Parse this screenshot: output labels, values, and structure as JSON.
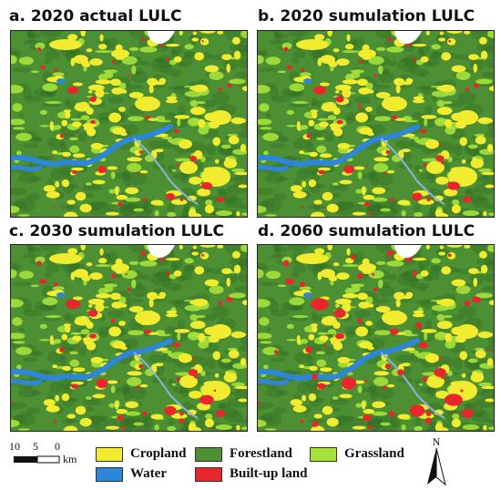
{
  "panels": [
    {
      "title": "a. 2020 actual LULC",
      "urban_scale": 1.0
    },
    {
      "title": "b. 2020 sumulation LULC",
      "urban_scale": 1.15
    },
    {
      "title": "c. 2030 sumulation LULC",
      "urban_scale": 1.3
    },
    {
      "title": "d. 2060 sumulation LULC",
      "urban_scale": 1.65
    }
  ],
  "scale": {
    "ticks": [
      "10",
      "5",
      "0"
    ],
    "unit": "km"
  },
  "legend": {
    "cropland": "Cropland",
    "forestland": "Forestland",
    "grassland": "Grassland",
    "water": "Water",
    "builtup": "Built-up land"
  },
  "colors": {
    "cropland": "#f1ec2f",
    "forestland": "#4d8f33",
    "grassland": "#a6e23a",
    "water": "#2e86d8",
    "builtup": "#e8262b"
  },
  "north": {
    "label": "N",
    "icon": "north-arrow-icon"
  }
}
